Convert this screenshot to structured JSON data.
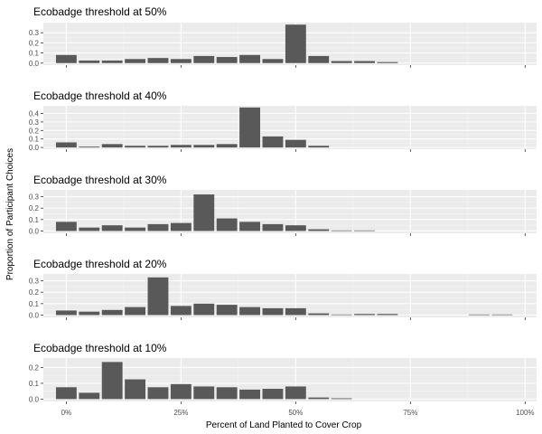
{
  "chart_data": {
    "type": "bar",
    "xlabel": "Percent of Land Planted to Cover Crop",
    "ylabel": "Proportion of Participant Choices",
    "x_ticks": [
      {
        "value": 0,
        "label": "0%"
      },
      {
        "value": 25,
        "label": "25%"
      },
      {
        "value": 50,
        "label": "50%"
      },
      {
        "value": 75,
        "label": "75%"
      },
      {
        "value": 100,
        "label": "100%"
      }
    ],
    "xlim": [
      -5,
      102.5
    ],
    "bar_width": 4.5,
    "colors": {
      "bar": "#595959",
      "panel_bg": "#ebebeb",
      "grid_major": "#ffffff",
      "grid_minor": "#f5f5f5"
    },
    "panels": [
      {
        "title": "Ecobadge threshold at 50%",
        "ylim": [
          -0.02,
          0.4
        ],
        "y_ticks": [
          {
            "value": 0.0,
            "label": "0.0"
          },
          {
            "value": 0.1,
            "label": "0.1"
          },
          {
            "value": 0.2,
            "label": "0.2"
          },
          {
            "value": 0.3,
            "label": "0.3"
          }
        ],
        "x": [
          0,
          5,
          10,
          15,
          20,
          25,
          30,
          35,
          40,
          45,
          50,
          55,
          60,
          65,
          70
        ],
        "values": [
          0.08,
          0.025,
          0.025,
          0.04,
          0.05,
          0.04,
          0.07,
          0.06,
          0.08,
          0.04,
          0.38,
          0.07,
          0.02,
          0.02,
          0.01
        ]
      },
      {
        "title": "Ecobadge threshold at 40%",
        "ylim": [
          -0.02,
          0.49
        ],
        "y_ticks": [
          {
            "value": 0.0,
            "label": "0.0"
          },
          {
            "value": 0.1,
            "label": "0.1"
          },
          {
            "value": 0.2,
            "label": "0.2"
          },
          {
            "value": 0.3,
            "label": "0.3"
          },
          {
            "value": 0.4,
            "label": "0.4"
          }
        ],
        "x": [
          0,
          5,
          10,
          15,
          20,
          25,
          30,
          35,
          40,
          45,
          50,
          55
        ],
        "values": [
          0.06,
          0.01,
          0.04,
          0.02,
          0.02,
          0.03,
          0.03,
          0.04,
          0.47,
          0.13,
          0.09,
          0.02
        ]
      },
      {
        "title": "Ecobadge threshold at 30%",
        "ylim": [
          -0.02,
          0.36
        ],
        "y_ticks": [
          {
            "value": 0.0,
            "label": "0.0"
          },
          {
            "value": 0.1,
            "label": "0.1"
          },
          {
            "value": 0.2,
            "label": "0.2"
          },
          {
            "value": 0.3,
            "label": "0.3"
          }
        ],
        "x": [
          0,
          5,
          10,
          15,
          20,
          25,
          30,
          35,
          40,
          45,
          50,
          55,
          60,
          65
        ],
        "values": [
          0.08,
          0.03,
          0.05,
          0.03,
          0.06,
          0.07,
          0.32,
          0.11,
          0.08,
          0.06,
          0.05,
          0.015,
          0.005,
          0.005
        ]
      },
      {
        "title": "Ecobadge threshold at 20%",
        "ylim": [
          -0.02,
          0.36
        ],
        "y_ticks": [
          {
            "value": 0.0,
            "label": "0.0"
          },
          {
            "value": 0.1,
            "label": "0.1"
          },
          {
            "value": 0.2,
            "label": "0.2"
          },
          {
            "value": 0.3,
            "label": "0.3"
          }
        ],
        "x": [
          0,
          5,
          10,
          15,
          20,
          25,
          30,
          35,
          40,
          45,
          50,
          55,
          60,
          65,
          70,
          90,
          95
        ],
        "values": [
          0.04,
          0.03,
          0.045,
          0.07,
          0.33,
          0.08,
          0.1,
          0.09,
          0.07,
          0.06,
          0.06,
          0.015,
          0.005,
          0.01,
          0.01,
          0.005,
          0.005
        ]
      },
      {
        "title": "Ecobadge threshold at 10%",
        "ylim": [
          -0.015,
          0.26
        ],
        "y_ticks": [
          {
            "value": 0.0,
            "label": "0.0"
          },
          {
            "value": 0.1,
            "label": "0.1"
          },
          {
            "value": 0.2,
            "label": "0.2"
          }
        ],
        "x": [
          0,
          5,
          10,
          15,
          20,
          25,
          30,
          35,
          40,
          45,
          50,
          55,
          60
        ],
        "values": [
          0.075,
          0.04,
          0.235,
          0.125,
          0.075,
          0.095,
          0.08,
          0.075,
          0.06,
          0.065,
          0.08,
          0.01,
          0.005
        ]
      }
    ]
  }
}
